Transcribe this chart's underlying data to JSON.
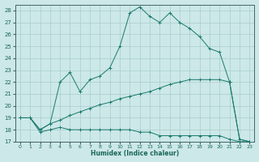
{
  "xlabel": "Humidex (Indice chaleur)",
  "xlim": [
    -0.5,
    23.5
  ],
  "ylim": [
    17,
    28.5
  ],
  "yticks": [
    17,
    18,
    19,
    20,
    21,
    22,
    23,
    24,
    25,
    26,
    27,
    28
  ],
  "xticks": [
    0,
    1,
    2,
    3,
    4,
    5,
    6,
    7,
    8,
    9,
    10,
    11,
    12,
    13,
    14,
    15,
    16,
    17,
    18,
    19,
    20,
    21,
    22,
    23
  ],
  "background_color": "#cce8e8",
  "grid_color": "#b0d8d8",
  "line_color": "#1a7a6e",
  "line1_x": [
    0,
    1,
    2,
    3,
    4,
    5,
    6,
    7,
    8,
    9,
    10,
    11,
    12,
    13,
    14,
    15,
    16,
    17,
    18,
    19,
    20,
    21,
    22,
    23
  ],
  "line1_y": [
    19.0,
    19.0,
    17.8,
    18.0,
    18.2,
    18.0,
    18.0,
    18.0,
    18.0,
    18.0,
    18.0,
    18.0,
    17.8,
    17.8,
    17.5,
    17.5,
    17.5,
    17.5,
    17.5,
    17.5,
    17.5,
    17.2,
    17.0,
    17.0
  ],
  "line2_x": [
    0,
    1,
    2,
    3,
    4,
    5,
    6,
    7,
    8,
    9,
    10,
    11,
    12,
    13,
    14,
    15,
    16,
    17,
    18,
    19,
    20,
    21,
    22,
    23
  ],
  "line2_y": [
    19.0,
    19.0,
    18.0,
    18.5,
    18.8,
    19.2,
    19.5,
    19.8,
    20.1,
    20.3,
    20.6,
    20.8,
    21.0,
    21.2,
    21.5,
    21.8,
    22.0,
    22.2,
    22.2,
    22.2,
    22.2,
    22.0,
    17.2,
    17.0
  ],
  "line3_x": [
    0,
    1,
    2,
    3,
    4,
    5,
    6,
    7,
    8,
    9,
    10,
    11,
    12,
    13,
    14,
    15,
    16,
    17,
    18,
    19,
    20,
    21,
    22,
    23
  ],
  "line3_y": [
    19.0,
    19.0,
    18.0,
    18.5,
    22.0,
    22.8,
    21.2,
    22.2,
    22.5,
    23.2,
    25.0,
    27.8,
    28.3,
    27.5,
    27.0,
    27.8,
    27.0,
    26.5,
    25.8,
    24.8,
    24.5,
    22.0,
    17.2,
    17.0
  ]
}
